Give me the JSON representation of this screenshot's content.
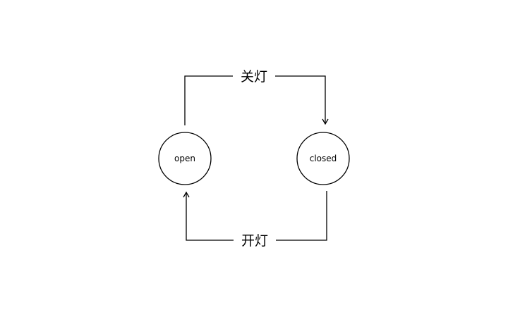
{
  "diagram": {
    "states": {
      "open": "open",
      "closed": "closed"
    },
    "transitions": {
      "open_to_closed": "关灯",
      "closed_to_open": "开灯"
    }
  }
}
